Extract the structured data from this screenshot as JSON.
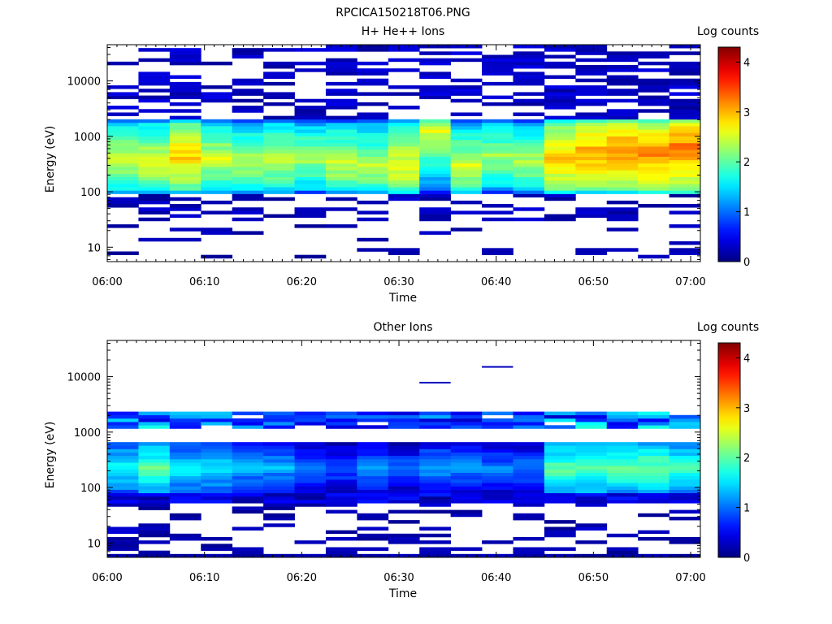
{
  "figure_title": "RPCICA150218T06.PNG",
  "chart_data": [
    {
      "type": "heatmap",
      "title": "H+ He++ Ions",
      "xlabel": "Time",
      "ylabel": "Energy (eV)",
      "y_scale": "log",
      "xlim": [
        "06:00",
        "07:01"
      ],
      "ylim": [
        5.5,
        45000
      ],
      "x_ticks": [
        "06:00",
        "06:10",
        "06:20",
        "06:30",
        "06:40",
        "06:50",
        "07:00"
      ],
      "y_ticks": [
        "10",
        "100",
        "1000",
        "10000"
      ],
      "colorbar": {
        "label": "Log counts",
        "min": 0,
        "max": 4.3,
        "ticks": [
          "0",
          "1",
          "2",
          "3",
          "4"
        ],
        "colormap": "jet"
      },
      "time_bins": 19,
      "core_band_energy_range": [
        90,
        2100
      ],
      "column_peak_log_counts": [
        2.5,
        2.6,
        2.9,
        2.5,
        2.4,
        2.5,
        2.3,
        2.5,
        2.4,
        2.7,
        2.6,
        2.5,
        2.3,
        2.4,
        3.0,
        3.1,
        3.2,
        3.2,
        3.3
      ],
      "column_peak_energy_ev": [
        400,
        350,
        450,
        400,
        350,
        380,
        400,
        330,
        300,
        300,
        1300,
        300,
        450,
        350,
        400,
        500,
        550,
        480,
        600
      ],
      "sparse_high_energy_counts": "scattered ~0.1-0.4 log counts above 2500 eV",
      "low_energy_patches_ev": [
        10,
        15,
        25,
        30,
        45,
        60
      ]
    },
    {
      "type": "heatmap",
      "title": "Other Ions",
      "xlabel": "Time",
      "ylabel": "Energy (eV)",
      "y_scale": "log",
      "xlim": [
        "06:00",
        "07:01"
      ],
      "ylim": [
        5.5,
        45000
      ],
      "x_ticks": [
        "06:00",
        "06:10",
        "06:20",
        "06:30",
        "06:40",
        "06:50",
        "07:00"
      ],
      "y_ticks": [
        "10",
        "100",
        "1000",
        "10000"
      ],
      "colorbar": {
        "label": "Log counts",
        "min": 0,
        "max": 4.3,
        "ticks": [
          "0",
          "1",
          "2",
          "3",
          "4"
        ],
        "colormap": "jet"
      },
      "time_bins": 19,
      "main_band_energy_range": [
        55,
        700
      ],
      "upper_band_energy_range": [
        1100,
        2300
      ],
      "column_peak_log_counts": [
        1.7,
        2.0,
        1.6,
        1.6,
        1.3,
        1.3,
        1.1,
        1.0,
        1.2,
        1.0,
        1.3,
        1.2,
        1.1,
        1.1,
        2.0,
        2.0,
        2.0,
        2.1,
        1.9
      ],
      "isolated_lines_ev": [
        7800,
        15000
      ]
    }
  ]
}
